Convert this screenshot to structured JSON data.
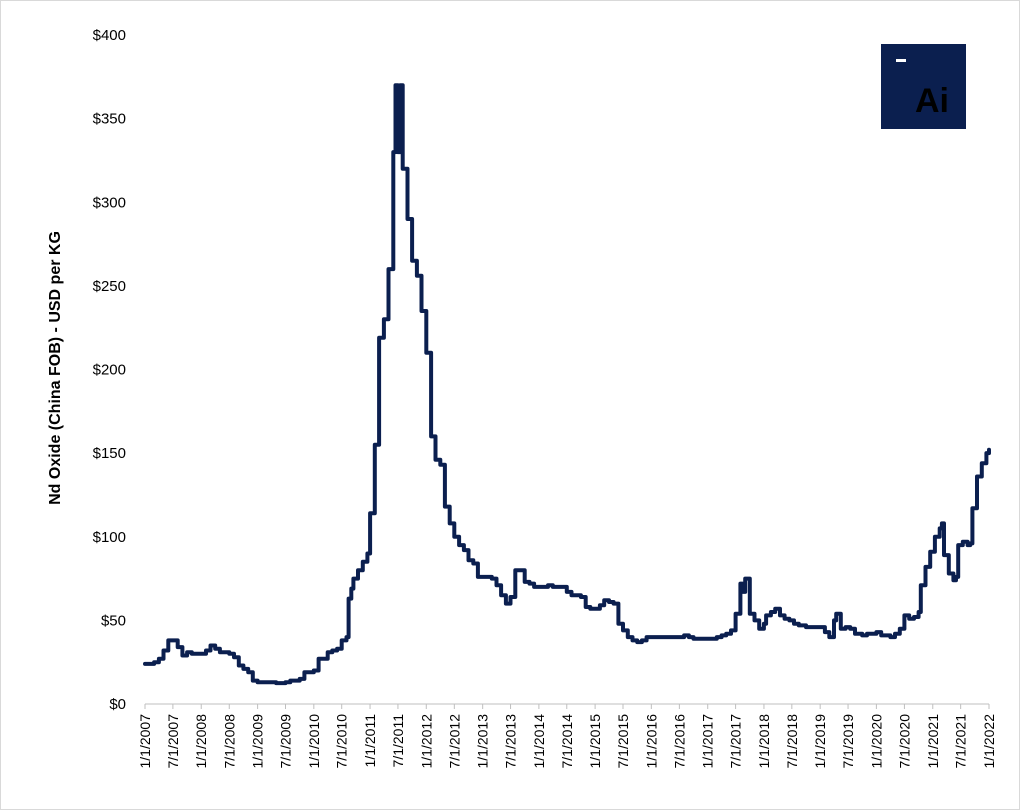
{
  "colors": {
    "line": "#0b1f4f",
    "logo_background": "#0b1f4f",
    "logo_text": "#ffffff",
    "axis": "#bfbfbf"
  },
  "logo": {
    "text": "Ai"
  },
  "chart_data": {
    "type": "line",
    "title": "",
    "xlabel": "",
    "ylabel": "Nd Oxide (China FOB) - USD per KG",
    "xlim": [
      "2007-01-01",
      "2022-01-01"
    ],
    "ylim": [
      0,
      400
    ],
    "grid": false,
    "legend": "none",
    "y_ticks": [
      {
        "value": 0,
        "label": "$0"
      },
      {
        "value": 50,
        "label": "$50"
      },
      {
        "value": 100,
        "label": "$100"
      },
      {
        "value": 150,
        "label": "$150"
      },
      {
        "value": 200,
        "label": "$200"
      },
      {
        "value": 250,
        "label": "$250"
      },
      {
        "value": 300,
        "label": "$300"
      },
      {
        "value": 350,
        "label": "$350"
      },
      {
        "value": 400,
        "label": "$400"
      }
    ],
    "x_ticks": [
      {
        "date": "2007-01-01",
        "label": "1/1/2007"
      },
      {
        "date": "2007-07-01",
        "label": "7/1/2007"
      },
      {
        "date": "2008-01-01",
        "label": "1/1/2008"
      },
      {
        "date": "2008-07-01",
        "label": "7/1/2008"
      },
      {
        "date": "2009-01-01",
        "label": "1/1/2009"
      },
      {
        "date": "2009-07-01",
        "label": "7/1/2009"
      },
      {
        "date": "2010-01-01",
        "label": "1/1/2010"
      },
      {
        "date": "2010-07-01",
        "label": "7/1/2010"
      },
      {
        "date": "2011-01-01",
        "label": "1/1/2011"
      },
      {
        "date": "2011-07-01",
        "label": "7/1/2011"
      },
      {
        "date": "2012-01-01",
        "label": "1/1/2012"
      },
      {
        "date": "2012-07-01",
        "label": "7/1/2012"
      },
      {
        "date": "2013-01-01",
        "label": "1/1/2013"
      },
      {
        "date": "2013-07-01",
        "label": "7/1/2013"
      },
      {
        "date": "2014-01-01",
        "label": "1/1/2014"
      },
      {
        "date": "2014-07-01",
        "label": "7/1/2014"
      },
      {
        "date": "2015-01-01",
        "label": "1/1/2015"
      },
      {
        "date": "2015-07-01",
        "label": "7/1/2015"
      },
      {
        "date": "2016-01-01",
        "label": "1/1/2016"
      },
      {
        "date": "2016-07-01",
        "label": "7/1/2016"
      },
      {
        "date": "2017-01-01",
        "label": "1/1/2017"
      },
      {
        "date": "2017-07-01",
        "label": "7/1/2017"
      },
      {
        "date": "2018-01-01",
        "label": "1/1/2018"
      },
      {
        "date": "2018-07-01",
        "label": "7/1/2018"
      },
      {
        "date": "2019-01-01",
        "label": "1/1/2019"
      },
      {
        "date": "2019-07-01",
        "label": "7/1/2019"
      },
      {
        "date": "2020-01-01",
        "label": "1/1/2020"
      },
      {
        "date": "2020-07-01",
        "label": "7/1/2020"
      },
      {
        "date": "2021-01-01",
        "label": "1/1/2021"
      },
      {
        "date": "2021-07-01",
        "label": "7/1/2021"
      },
      {
        "date": "2022-01-01",
        "label": "1/1/2022"
      }
    ],
    "series": [
      {
        "points": [
          [
            "2007-01-01",
            24
          ],
          [
            "2007-03-01",
            25
          ],
          [
            "2007-04-01",
            27
          ],
          [
            "2007-05-01",
            32
          ],
          [
            "2007-06-01",
            38
          ],
          [
            "2007-07-15",
            38
          ],
          [
            "2007-08-01",
            34
          ],
          [
            "2007-09-01",
            29
          ],
          [
            "2007-10-01",
            31
          ],
          [
            "2007-11-01",
            30
          ],
          [
            "2008-01-15",
            30
          ],
          [
            "2008-02-01",
            32
          ],
          [
            "2008-03-01",
            35
          ],
          [
            "2008-04-01",
            33
          ],
          [
            "2008-05-01",
            31
          ],
          [
            "2008-07-01",
            30
          ],
          [
            "2008-08-01",
            28
          ],
          [
            "2008-09-01",
            23
          ],
          [
            "2008-10-01",
            21
          ],
          [
            "2008-11-01",
            19
          ],
          [
            "2008-12-01",
            14
          ],
          [
            "2009-01-01",
            13
          ],
          [
            "2009-03-01",
            13
          ],
          [
            "2009-05-01",
            12.5
          ],
          [
            "2009-07-01",
            13
          ],
          [
            "2009-08-01",
            14
          ],
          [
            "2009-10-01",
            15
          ],
          [
            "2009-11-01",
            19
          ],
          [
            "2010-01-01",
            20
          ],
          [
            "2010-02-01",
            27
          ],
          [
            "2010-04-01",
            31
          ],
          [
            "2010-05-01",
            32
          ],
          [
            "2010-06-01",
            33
          ],
          [
            "2010-07-01",
            38
          ],
          [
            "2010-08-01",
            40
          ],
          [
            "2010-08-15",
            63
          ],
          [
            "2010-09-01",
            69
          ],
          [
            "2010-09-15",
            75
          ],
          [
            "2010-10-15",
            80
          ],
          [
            "2010-11-15",
            85
          ],
          [
            "2010-12-15",
            90
          ],
          [
            "2011-01-01",
            114
          ],
          [
            "2011-02-01",
            155
          ],
          [
            "2011-03-01",
            219
          ],
          [
            "2011-04-01",
            230
          ],
          [
            "2011-05-01",
            260
          ],
          [
            "2011-06-01",
            330
          ],
          [
            "2011-06-15",
            370
          ],
          [
            "2011-07-01",
            330
          ],
          [
            "2011-07-15",
            370
          ],
          [
            "2011-08-01",
            320
          ],
          [
            "2011-09-01",
            290
          ],
          [
            "2011-10-01",
            265
          ],
          [
            "2011-11-01",
            256
          ],
          [
            "2011-12-01",
            235
          ],
          [
            "2012-01-01",
            210
          ],
          [
            "2012-02-01",
            160
          ],
          [
            "2012-03-01",
            146
          ],
          [
            "2012-04-01",
            143
          ],
          [
            "2012-05-01",
            118
          ],
          [
            "2012-06-01",
            108
          ],
          [
            "2012-07-01",
            100
          ],
          [
            "2012-08-01",
            95
          ],
          [
            "2012-09-01",
            92
          ],
          [
            "2012-10-01",
            86
          ],
          [
            "2012-11-01",
            84
          ],
          [
            "2012-12-01",
            76
          ],
          [
            "2013-03-01",
            75
          ],
          [
            "2013-04-01",
            71
          ],
          [
            "2013-05-01",
            65
          ],
          [
            "2013-06-01",
            60
          ],
          [
            "2013-07-01",
            64
          ],
          [
            "2013-08-01",
            80
          ],
          [
            "2013-09-01",
            80
          ],
          [
            "2013-10-01",
            73
          ],
          [
            "2013-11-01",
            72
          ],
          [
            "2013-12-01",
            70
          ],
          [
            "2014-03-01",
            71
          ],
          [
            "2014-04-01",
            70
          ],
          [
            "2014-07-01",
            67
          ],
          [
            "2014-08-01",
            65
          ],
          [
            "2014-10-01",
            64
          ],
          [
            "2014-11-01",
            58
          ],
          [
            "2014-12-01",
            57
          ],
          [
            "2015-02-01",
            59
          ],
          [
            "2015-03-01",
            62
          ],
          [
            "2015-04-01",
            61
          ],
          [
            "2015-05-01",
            60
          ],
          [
            "2015-06-01",
            48
          ],
          [
            "2015-07-01",
            44
          ],
          [
            "2015-08-01",
            40
          ],
          [
            "2015-09-01",
            38
          ],
          [
            "2015-10-01",
            37
          ],
          [
            "2015-11-01",
            38
          ],
          [
            "2015-12-01",
            40
          ],
          [
            "2016-01-01",
            40
          ],
          [
            "2016-07-01",
            40
          ],
          [
            "2016-08-01",
            41
          ],
          [
            "2016-09-01",
            40
          ],
          [
            "2016-10-01",
            39
          ],
          [
            "2017-01-01",
            39
          ],
          [
            "2017-03-01",
            40
          ],
          [
            "2017-04-01",
            41
          ],
          [
            "2017-05-01",
            42
          ],
          [
            "2017-06-01",
            44
          ],
          [
            "2017-07-01",
            54
          ],
          [
            "2017-08-01",
            72
          ],
          [
            "2017-08-15",
            67
          ],
          [
            "2017-09-01",
            75
          ],
          [
            "2017-10-01",
            54
          ],
          [
            "2017-11-01",
            50
          ],
          [
            "2017-12-01",
            45
          ],
          [
            "2018-01-01",
            48
          ],
          [
            "2018-01-15",
            53
          ],
          [
            "2018-02-15",
            55
          ],
          [
            "2018-03-15",
            57
          ],
          [
            "2018-04-15",
            53
          ],
          [
            "2018-05-15",
            51
          ],
          [
            "2018-06-15",
            50
          ],
          [
            "2018-07-15",
            48
          ],
          [
            "2018-08-15",
            47
          ],
          [
            "2018-10-01",
            46
          ],
          [
            "2018-11-01",
            46
          ],
          [
            "2019-01-01",
            46
          ],
          [
            "2019-02-01",
            43
          ],
          [
            "2019-03-01",
            40
          ],
          [
            "2019-04-01",
            50
          ],
          [
            "2019-04-15",
            54
          ],
          [
            "2019-05-15",
            45
          ],
          [
            "2019-06-15",
            46
          ],
          [
            "2019-07-15",
            45
          ],
          [
            "2019-08-15",
            42
          ],
          [
            "2019-10-01",
            41
          ],
          [
            "2019-11-01",
            42
          ],
          [
            "2020-01-01",
            43
          ],
          [
            "2020-02-01",
            41
          ],
          [
            "2020-04-01",
            40
          ],
          [
            "2020-05-01",
            42
          ],
          [
            "2020-06-01",
            45
          ],
          [
            "2020-07-01",
            53
          ],
          [
            "2020-08-01",
            51
          ],
          [
            "2020-09-01",
            52
          ],
          [
            "2020-10-01",
            55
          ],
          [
            "2020-10-15",
            71
          ],
          [
            "2020-11-15",
            82
          ],
          [
            "2020-12-15",
            91
          ],
          [
            "2021-01-15",
            100
          ],
          [
            "2021-02-15",
            105
          ],
          [
            "2021-03-01",
            108
          ],
          [
            "2021-03-15",
            89
          ],
          [
            "2021-04-15",
            78
          ],
          [
            "2021-05-15",
            74
          ],
          [
            "2021-06-01",
            76
          ],
          [
            "2021-06-15",
            95
          ],
          [
            "2021-07-15",
            97
          ],
          [
            "2021-08-15",
            95
          ],
          [
            "2021-09-01",
            96
          ],
          [
            "2021-09-15",
            117
          ],
          [
            "2021-10-15",
            136
          ],
          [
            "2021-11-15",
            144
          ],
          [
            "2021-12-15",
            150
          ],
          [
            "2022-01-01",
            152
          ]
        ]
      }
    ]
  }
}
